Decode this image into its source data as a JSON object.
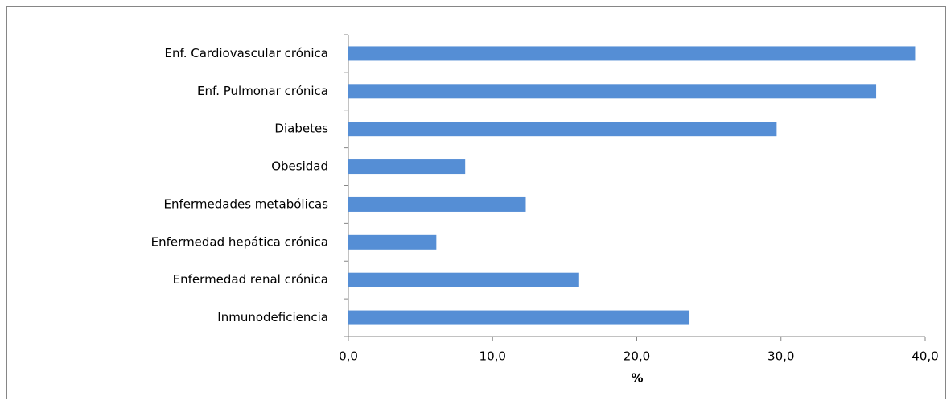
{
  "chart_data": {
    "type": "barh",
    "x_label": "%",
    "categories": [
      "Enf. Cardiovascular crónica",
      "Enf. Pulmonar crónica",
      "Diabetes",
      "Obesidad",
      "Enfermedades metabólicas",
      "Enfermedad hepática crónica",
      "Enfermedad renal crónica",
      "Inmunodeficiencia"
    ],
    "values": [
      39.3,
      36.6,
      29.7,
      8.1,
      12.3,
      6.1,
      16.0,
      23.6
    ],
    "color": "#558ed5",
    "xlim": [
      0,
      40
    ],
    "xticks": [
      {
        "value": 0,
        "label": "0,0"
      },
      {
        "value": 10,
        "label": "10,0"
      },
      {
        "value": 20,
        "label": "20,0"
      },
      {
        "value": 30,
        "label": "30,0"
      },
      {
        "value": 40,
        "label": "40,0"
      }
    ],
    "grid": false
  }
}
